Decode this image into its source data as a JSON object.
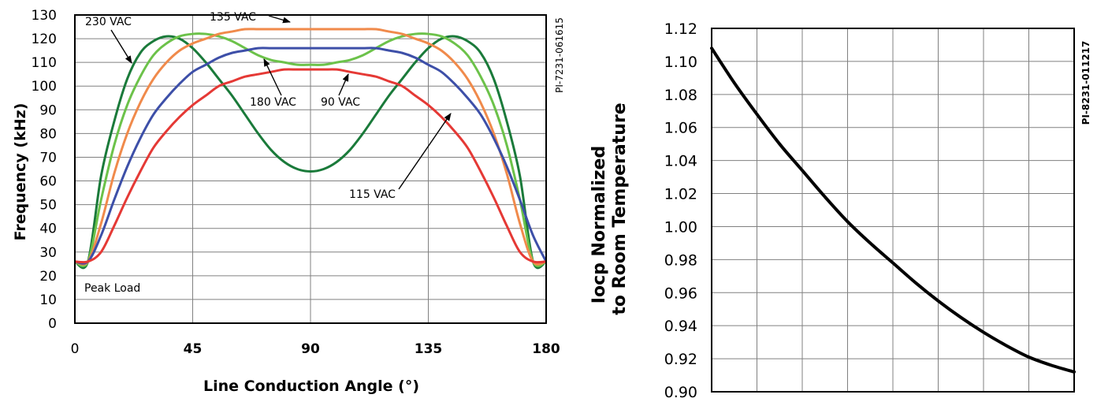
{
  "chart_data": [
    {
      "type": "line",
      "title": "",
      "xlabel": "Line Conduction Angle (°)",
      "ylabel": "Frequency (kHz)",
      "xlim": [
        0,
        180
      ],
      "ylim": [
        0,
        130
      ],
      "x_ticks": [
        "0",
        "45",
        "90",
        "135",
        "180"
      ],
      "y_ticks": [
        "0",
        "10",
        "20",
        "30",
        "40",
        "50",
        "60",
        "70",
        "80",
        "90",
        "100",
        "110",
        "120",
        "130"
      ],
      "grid": true,
      "figure_code": "PI-7231-061615",
      "note": "Peak Load",
      "series": [
        {
          "name": "230 VAC",
          "color": "#1a7a3a",
          "x": [
            0,
            5,
            10,
            15,
            20,
            25,
            30,
            35,
            40,
            45,
            50,
            55,
            60,
            65,
            70,
            75,
            80,
            85,
            90,
            95,
            100,
            105,
            110,
            115,
            120,
            125,
            130,
            135,
            140,
            145,
            150,
            155,
            160,
            165,
            170,
            175,
            180
          ],
          "y": [
            26,
            26,
            62,
            85,
            103,
            114,
            119,
            121,
            120,
            116,
            110,
            103,
            96,
            88,
            80,
            73,
            68,
            65,
            64,
            65,
            68,
            73,
            80,
            88,
            96,
            103,
            110,
            116,
            120,
            121,
            119,
            114,
            103,
            85,
            62,
            26,
            26
          ]
        },
        {
          "name": "180 VAC",
          "color": "#6cc24a",
          "x": [
            0,
            5,
            10,
            15,
            20,
            25,
            30,
            35,
            40,
            45,
            50,
            55,
            60,
            65,
            70,
            75,
            80,
            85,
            90,
            95,
            100,
            105,
            110,
            115,
            120,
            125,
            130,
            135,
            140,
            145,
            150,
            155,
            160,
            165,
            170,
            175,
            180
          ],
          "y": [
            26,
            26,
            52,
            75,
            92,
            104,
            113,
            118,
            121,
            122,
            122,
            121,
            119,
            116,
            113,
            111,
            110,
            109,
            109,
            109,
            110,
            111,
            113,
            116,
            119,
            121,
            122,
            122,
            121,
            118,
            113,
            104,
            92,
            75,
            52,
            26,
            26
          ]
        },
        {
          "name": "135 VAC",
          "color": "#f08a4b",
          "x": [
            0,
            5,
            10,
            15,
            20,
            25,
            30,
            35,
            40,
            45,
            50,
            55,
            60,
            65,
            70,
            75,
            80,
            85,
            90,
            95,
            100,
            105,
            110,
            115,
            120,
            125,
            130,
            135,
            140,
            145,
            150,
            155,
            160,
            165,
            170,
            175,
            180
          ],
          "y": [
            26,
            26,
            42,
            63,
            80,
            93,
            103,
            110,
            115,
            118,
            120,
            122,
            123,
            124,
            124,
            124,
            124,
            124,
            124,
            124,
            124,
            124,
            124,
            124,
            123,
            122,
            120,
            118,
            115,
            110,
            103,
            93,
            80,
            63,
            42,
            26,
            26
          ]
        },
        {
          "name": "115 VAC",
          "color": "#3d4fa8",
          "x": [
            0,
            5,
            10,
            15,
            20,
            25,
            30,
            35,
            40,
            45,
            50,
            55,
            60,
            65,
            70,
            75,
            80,
            85,
            90,
            95,
            100,
            105,
            110,
            115,
            120,
            125,
            130,
            135,
            140,
            145,
            150,
            155,
            160,
            165,
            170,
            175,
            180
          ],
          "y": [
            26,
            26,
            37,
            52,
            66,
            78,
            88,
            95,
            101,
            106,
            109,
            112,
            114,
            115,
            116,
            116,
            116,
            116,
            116,
            116,
            116,
            116,
            116,
            116,
            115,
            114,
            112,
            109,
            106,
            101,
            95,
            88,
            78,
            66,
            52,
            37,
            26
          ]
        },
        {
          "name": "90 VAC",
          "color": "#e53935",
          "x": [
            0,
            5,
            10,
            15,
            20,
            25,
            30,
            35,
            40,
            45,
            50,
            55,
            60,
            65,
            70,
            75,
            80,
            85,
            90,
            95,
            100,
            105,
            110,
            115,
            120,
            125,
            130,
            135,
            140,
            145,
            150,
            155,
            160,
            165,
            170,
            175,
            180
          ],
          "y": [
            26,
            26,
            30,
            41,
            53,
            64,
            74,
            81,
            87,
            92,
            96,
            100,
            102,
            104,
            105,
            106,
            107,
            107,
            107,
            107,
            107,
            106,
            105,
            104,
            102,
            100,
            96,
            92,
            87,
            81,
            74,
            64,
            53,
            41,
            30,
            26,
            26
          ]
        }
      ]
    },
    {
      "type": "line",
      "title": "",
      "xlabel": "",
      "ylabel_line1": "Iocp Normalized",
      "ylabel_line2": "to Room Temperature",
      "ylim": [
        0.9,
        1.12
      ],
      "y_ticks": [
        "0.90",
        "0.92",
        "0.94",
        "0.96",
        "0.98",
        "1.00",
        "1.02",
        "1.04",
        "1.06",
        "1.08",
        "1.10",
        "1.12"
      ],
      "grid": true,
      "figure_code": "PI-8231-011217",
      "series": [
        {
          "name": "",
          "color": "#000000",
          "x": [
            0,
            0.5,
            1,
            1.5,
            2,
            2.5,
            3,
            3.5,
            4,
            4.5,
            5,
            5.5,
            6,
            6.5,
            7,
            7.5,
            8
          ],
          "y": [
            1.108,
            1.087,
            1.068,
            1.05,
            1.034,
            1.018,
            1.003,
            0.99,
            0.978,
            0.966,
            0.955,
            0.945,
            0.936,
            0.928,
            0.921,
            0.916,
            0.912
          ]
        }
      ]
    }
  ],
  "colors": {
    "axis": "#000000",
    "grid": "#808080"
  }
}
